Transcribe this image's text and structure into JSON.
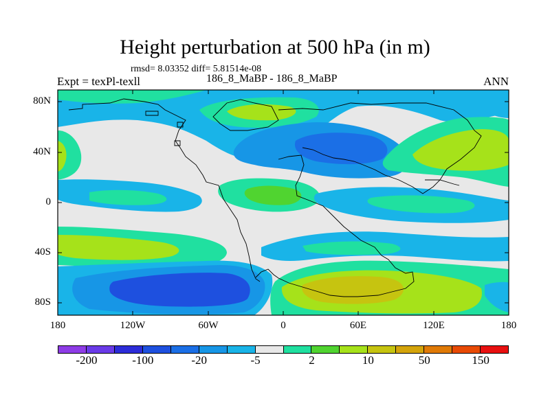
{
  "header": {
    "title": "Height perturbation at 500 hPa (in m)",
    "stats": "rmsd= 8.03352 diff= 5.81514e-08",
    "subtitle": "186_8_MaBP - 186_8_MaBP",
    "left_string": "Expt = texPl-texll",
    "right_string": "ANN"
  },
  "map": {
    "type": "contour-map",
    "projection": "cylindrical equidistant",
    "lat_ticks": [
      "80N",
      "40N",
      "0",
      "40S",
      "80S"
    ],
    "lon_ticks": [
      "180",
      "120W",
      "60W",
      "0",
      "60E",
      "120E",
      "180"
    ]
  },
  "colorbar": {
    "colors": [
      "#8e3ce6",
      "#6a3ae8",
      "#2c2cd8",
      "#1e50df",
      "#1b6fe6",
      "#1796e6",
      "#19b4e8",
      "#e8e8e8",
      "#20e0a0",
      "#50d430",
      "#a6e21a",
      "#c6c410",
      "#d4a40a",
      "#e07a06",
      "#e84a04",
      "#e81010"
    ],
    "labels": [
      "-200",
      "-100",
      "-20",
      "-5",
      "2",
      "10",
      "50",
      "150"
    ]
  },
  "palette": {
    "neutral": "#e8e8e8",
    "light_blue": "#19b4e8",
    "sky_blue": "#1796e6",
    "blue": "#1b6fe6",
    "dark_blue": "#1e50df",
    "teal": "#20e0a0",
    "green": "#50d430",
    "lime": "#a6e21a",
    "yellow": "#c6c410"
  }
}
